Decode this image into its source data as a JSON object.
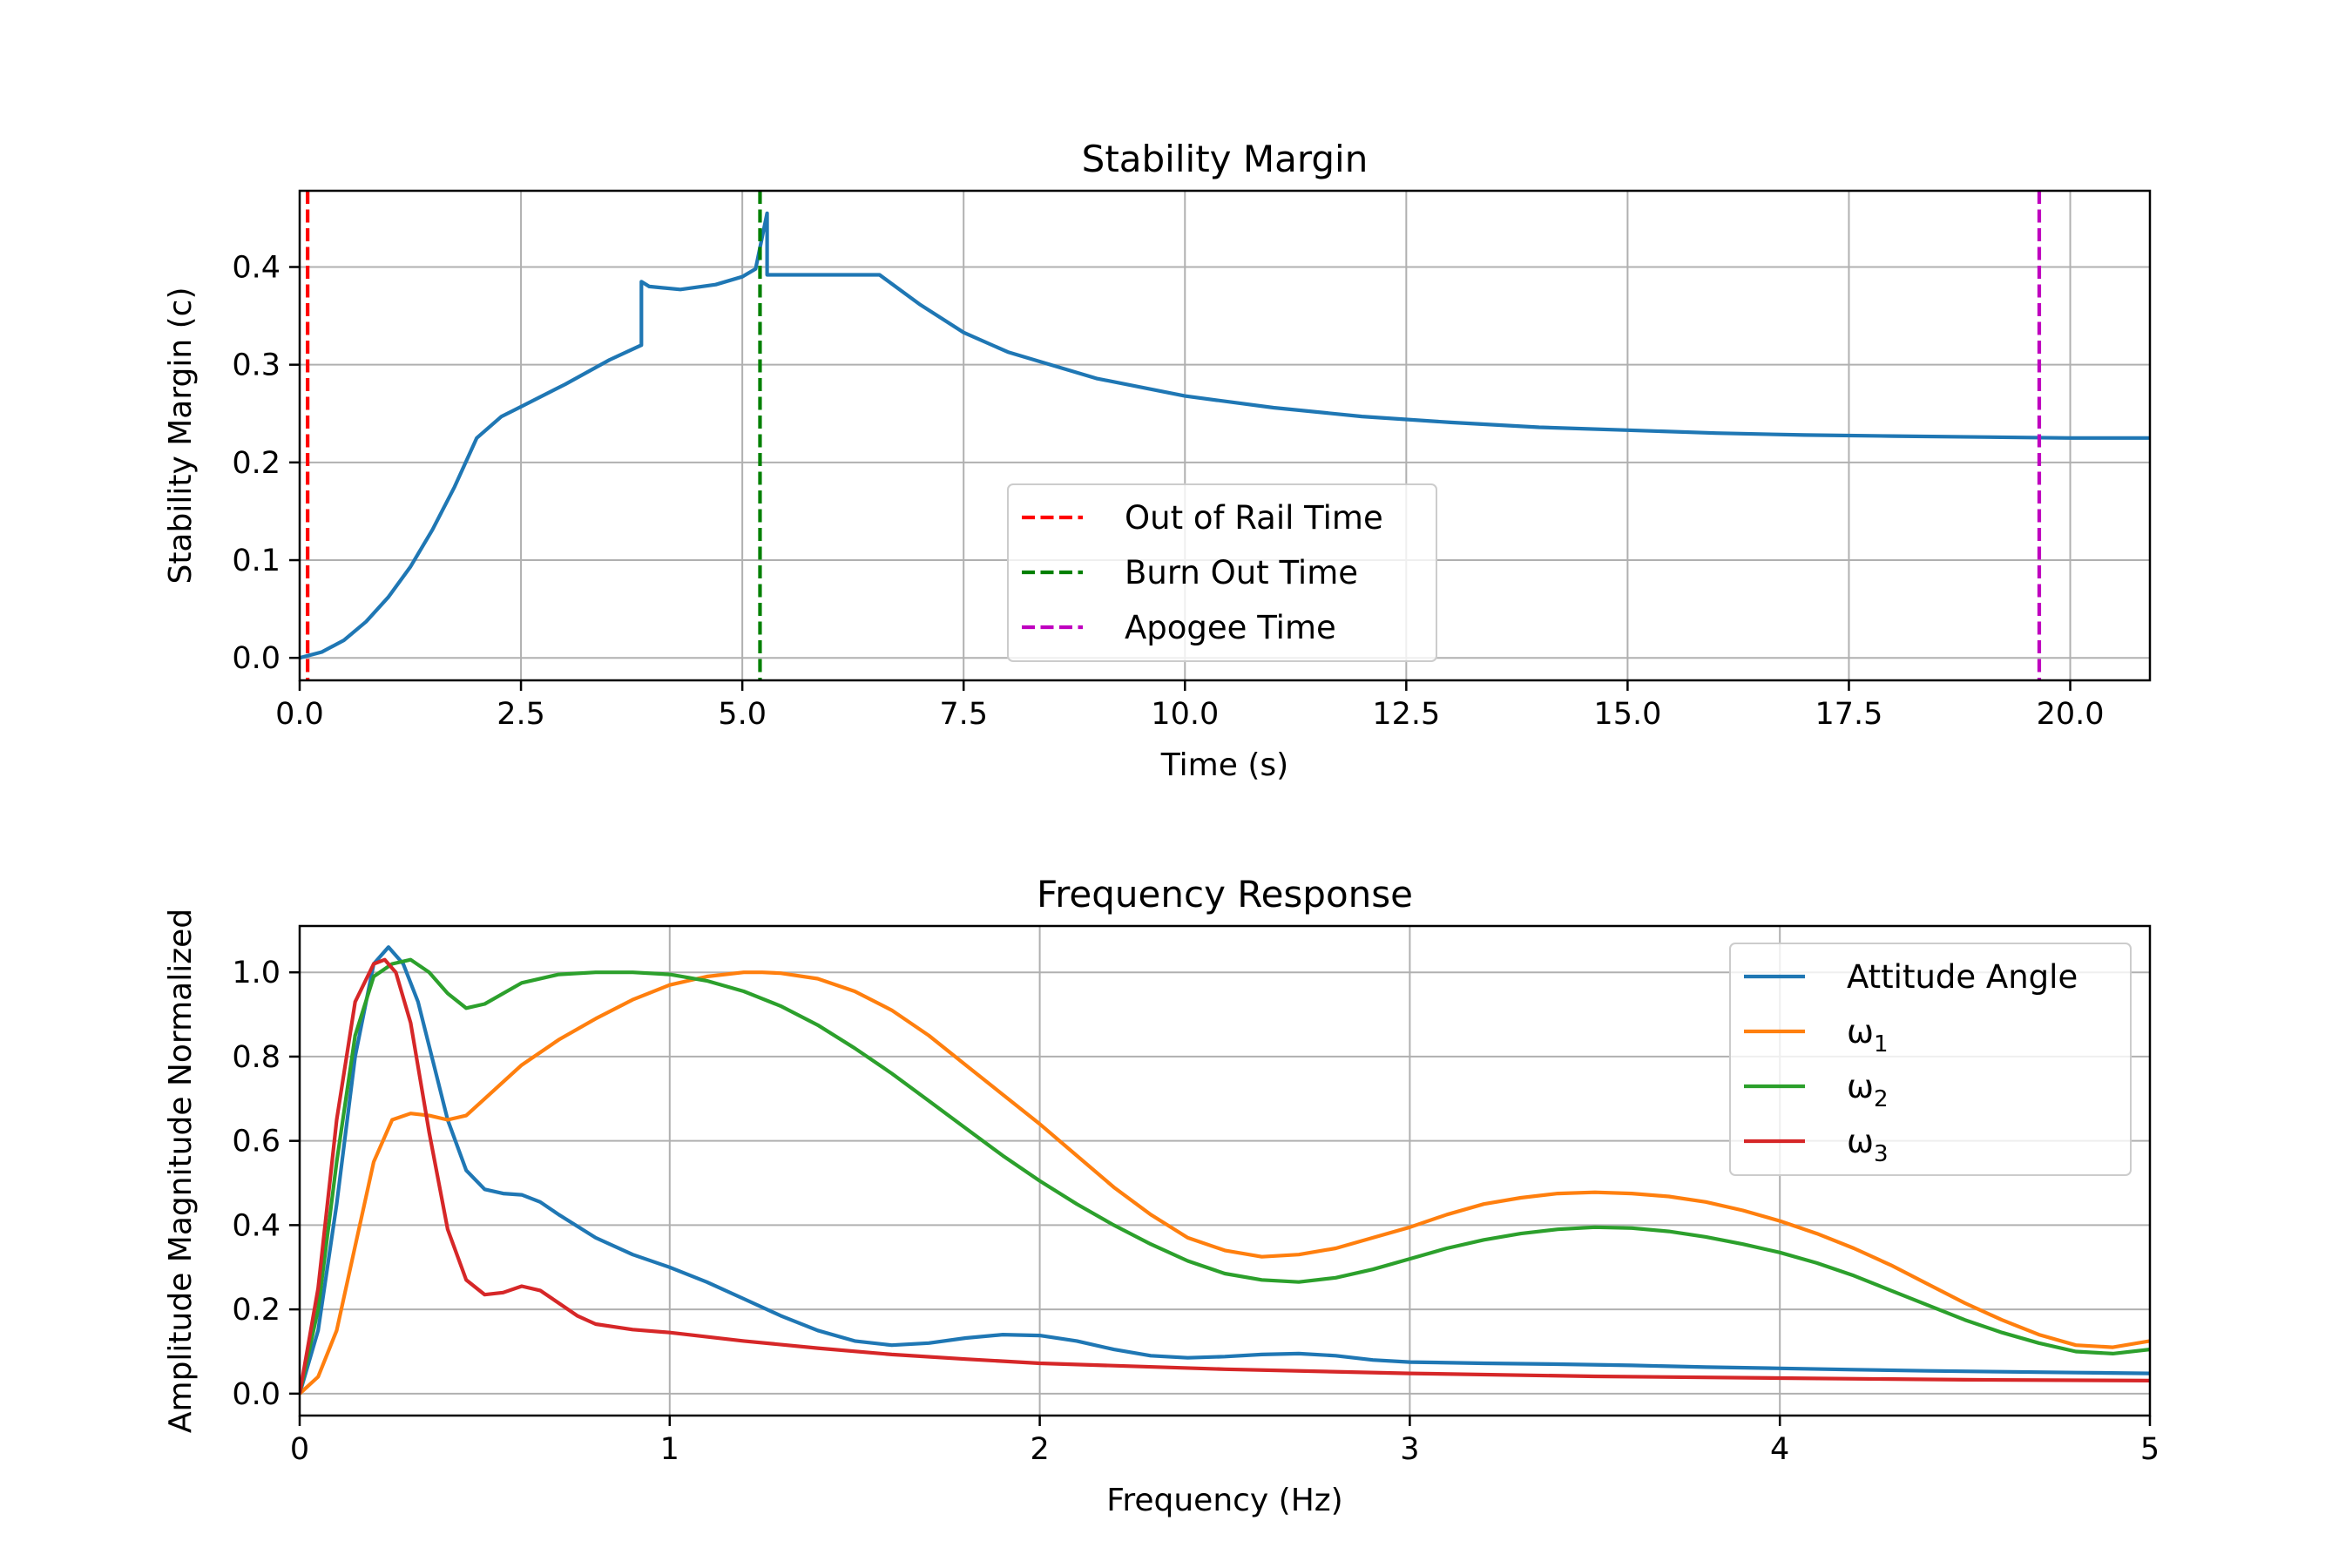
{
  "chart_data": [
    {
      "type": "line",
      "title": "Stability Margin",
      "xlabel": "Time (s)",
      "ylabel": "Stability Margin (c)",
      "xlim": [
        0,
        20.9
      ],
      "ylim": [
        -0.023,
        0.478
      ],
      "xticks": [
        0,
        2.5,
        5,
        7.5,
        10,
        12.5,
        15,
        17.5,
        20
      ],
      "xtick_labels": [
        "0.0",
        "2.5",
        "5.0",
        "7.5",
        "10.0",
        "12.5",
        "15.0",
        "17.5",
        "20.0"
      ],
      "yticks": [
        0,
        0.1,
        0.2,
        0.3,
        0.4
      ],
      "ytick_labels": [
        "0.0",
        "0.1",
        "0.2",
        "0.3",
        "0.4"
      ],
      "grid": true,
      "legend_position": "lower-center",
      "series": [
        {
          "color": "#1f77b4",
          "x": [
            0,
            0.25,
            0.5,
            0.75,
            1.0,
            1.25,
            1.5,
            1.75,
            2.0,
            2.28,
            2.5,
            3.0,
            3.5,
            3.86,
            3.86,
            3.95,
            4.3,
            4.7,
            5.0,
            5.15,
            5.28,
            5.28,
            5.28,
            6.0,
            6.55,
            7.0,
            7.5,
            8.0,
            9.0,
            10.0,
            11.0,
            12.0,
            13.0,
            14.0,
            15.0,
            16.0,
            17.0,
            18.0,
            19.0,
            20.0,
            20.9
          ],
          "y": [
            0,
            0.006,
            0.018,
            0.037,
            0.062,
            0.093,
            0.131,
            0.175,
            0.225,
            0.247,
            0.257,
            0.28,
            0.305,
            0.32,
            0.385,
            0.38,
            0.377,
            0.382,
            0.39,
            0.398,
            0.455,
            0.455,
            0.392,
            0.392,
            0.392,
            0.362,
            0.333,
            0.313,
            0.286,
            0.268,
            0.256,
            0.247,
            0.241,
            0.236,
            0.233,
            0.23,
            0.228,
            0.227,
            0.226,
            0.225,
            0.225
          ]
        }
      ],
      "vlines": [
        {
          "name": "Out of Rail Time",
          "x": 0.09,
          "color": "#ff0000"
        },
        {
          "name": "Burn Out Time",
          "x": 5.2,
          "color": "#008000"
        },
        {
          "name": "Apogee Time",
          "x": 19.65,
          "color": "#bf00bf"
        }
      ]
    },
    {
      "type": "line",
      "title": "Frequency Response",
      "xlabel": "Frequency (Hz)",
      "ylabel": "Amplitude Magnitude Normalized",
      "xlim": [
        0,
        5
      ],
      "ylim": [
        -0.052,
        1.11
      ],
      "xticks": [
        0,
        1,
        2,
        3,
        4,
        5
      ],
      "xtick_labels": [
        "0",
        "1",
        "2",
        "3",
        "4",
        "5"
      ],
      "yticks": [
        0,
        0.2,
        0.4,
        0.6,
        0.8,
        1.0
      ],
      "ytick_labels": [
        "0.0",
        "0.2",
        "0.4",
        "0.6",
        "0.8",
        "1.0"
      ],
      "grid": true,
      "legend_position": "upper-right",
      "series": [
        {
          "name": "Attitude Angle",
          "color": "#1f77b4",
          "x": [
            0,
            0.05,
            0.1,
            0.15,
            0.2,
            0.24,
            0.28,
            0.32,
            0.36,
            0.4,
            0.45,
            0.5,
            0.55,
            0.6,
            0.65,
            0.7,
            0.8,
            0.9,
            1.0,
            1.1,
            1.2,
            1.3,
            1.4,
            1.5,
            1.6,
            1.7,
            1.8,
            1.9,
            2.0,
            2.1,
            2.2,
            2.3,
            2.4,
            2.5,
            2.6,
            2.7,
            2.8,
            2.9,
            3.0,
            3.2,
            3.4,
            3.6,
            3.8,
            4.0,
            4.2,
            4.4,
            4.6,
            4.8,
            5.0
          ],
          "y": [
            0,
            0.15,
            0.45,
            0.8,
            1.02,
            1.06,
            1.02,
            0.93,
            0.79,
            0.65,
            0.53,
            0.485,
            0.475,
            0.472,
            0.455,
            0.425,
            0.37,
            0.33,
            0.3,
            0.265,
            0.225,
            0.185,
            0.15,
            0.125,
            0.115,
            0.12,
            0.132,
            0.14,
            0.138,
            0.125,
            0.105,
            0.09,
            0.085,
            0.088,
            0.093,
            0.095,
            0.09,
            0.08,
            0.075,
            0.072,
            0.07,
            0.067,
            0.063,
            0.06,
            0.057,
            0.054,
            0.052,
            0.05,
            0.048
          ]
        },
        {
          "name": "ω1",
          "color": "#ff7f0e",
          "x": [
            0,
            0.05,
            0.1,
            0.15,
            0.2,
            0.25,
            0.3,
            0.35,
            0.4,
            0.45,
            0.5,
            0.6,
            0.7,
            0.8,
            0.9,
            1.0,
            1.1,
            1.2,
            1.25,
            1.3,
            1.4,
            1.5,
            1.6,
            1.7,
            1.8,
            1.9,
            2.0,
            2.1,
            2.2,
            2.3,
            2.4,
            2.5,
            2.6,
            2.7,
            2.8,
            2.9,
            3.0,
            3.1,
            3.2,
            3.3,
            3.4,
            3.5,
            3.6,
            3.7,
            3.8,
            3.9,
            4.0,
            4.1,
            4.2,
            4.3,
            4.4,
            4.5,
            4.6,
            4.7,
            4.8,
            4.9,
            5.0
          ],
          "y": [
            0,
            0.04,
            0.15,
            0.35,
            0.55,
            0.65,
            0.665,
            0.66,
            0.65,
            0.66,
            0.7,
            0.78,
            0.84,
            0.89,
            0.935,
            0.97,
            0.99,
            1.0,
            1.0,
            0.998,
            0.985,
            0.955,
            0.91,
            0.85,
            0.78,
            0.71,
            0.64,
            0.565,
            0.49,
            0.425,
            0.37,
            0.34,
            0.325,
            0.33,
            0.345,
            0.37,
            0.395,
            0.425,
            0.45,
            0.465,
            0.475,
            0.478,
            0.475,
            0.468,
            0.455,
            0.435,
            0.41,
            0.38,
            0.345,
            0.305,
            0.26,
            0.215,
            0.175,
            0.14,
            0.115,
            0.11,
            0.125
          ]
        },
        {
          "name": "ω2",
          "color": "#2ca02c",
          "x": [
            0,
            0.05,
            0.1,
            0.15,
            0.2,
            0.25,
            0.3,
            0.35,
            0.4,
            0.45,
            0.5,
            0.6,
            0.7,
            0.8,
            0.9,
            1.0,
            1.1,
            1.2,
            1.3,
            1.4,
            1.5,
            1.6,
            1.7,
            1.8,
            1.9,
            2.0,
            2.1,
            2.2,
            2.3,
            2.4,
            2.5,
            2.6,
            2.7,
            2.8,
            2.9,
            3.0,
            3.1,
            3.2,
            3.3,
            3.4,
            3.5,
            3.6,
            3.7,
            3.8,
            3.9,
            4.0,
            4.1,
            4.2,
            4.3,
            4.4,
            4.5,
            4.6,
            4.7,
            4.8,
            4.9,
            5.0
          ],
          "y": [
            0,
            0.2,
            0.55,
            0.85,
            0.99,
            1.02,
            1.03,
            1.0,
            0.95,
            0.915,
            0.925,
            0.975,
            0.995,
            1.0,
            1.0,
            0.995,
            0.98,
            0.955,
            0.92,
            0.875,
            0.82,
            0.76,
            0.695,
            0.63,
            0.565,
            0.505,
            0.45,
            0.4,
            0.355,
            0.315,
            0.285,
            0.27,
            0.265,
            0.275,
            0.295,
            0.32,
            0.345,
            0.365,
            0.38,
            0.39,
            0.395,
            0.393,
            0.385,
            0.372,
            0.355,
            0.335,
            0.31,
            0.28,
            0.245,
            0.21,
            0.175,
            0.145,
            0.12,
            0.1,
            0.095,
            0.105
          ]
        },
        {
          "name": "ω3",
          "color": "#d62728",
          "x": [
            0,
            0.05,
            0.1,
            0.15,
            0.2,
            0.23,
            0.26,
            0.3,
            0.35,
            0.4,
            0.45,
            0.5,
            0.55,
            0.6,
            0.65,
            0.7,
            0.75,
            0.8,
            0.9,
            1.0,
            1.2,
            1.4,
            1.6,
            1.8,
            2.0,
            2.5,
            3.0,
            3.5,
            4.0,
            4.5,
            5.0
          ],
          "y": [
            0,
            0.25,
            0.65,
            0.93,
            1.02,
            1.03,
            1.0,
            0.88,
            0.62,
            0.39,
            0.27,
            0.235,
            0.24,
            0.255,
            0.245,
            0.215,
            0.185,
            0.165,
            0.152,
            0.145,
            0.125,
            0.108,
            0.093,
            0.082,
            0.072,
            0.058,
            0.048,
            0.041,
            0.037,
            0.033,
            0.031
          ]
        }
      ]
    }
  ]
}
